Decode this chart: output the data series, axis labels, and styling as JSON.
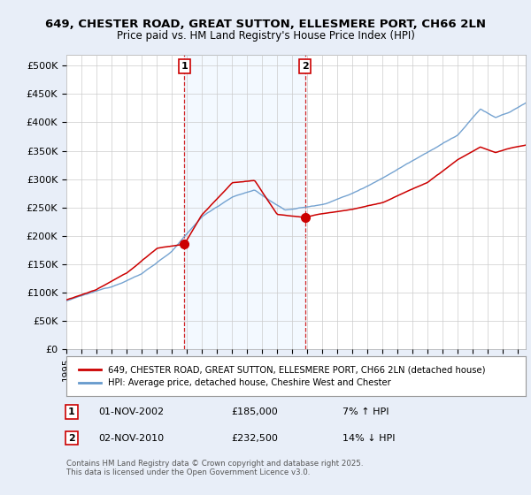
{
  "title1": "649, CHESTER ROAD, GREAT SUTTON, ELLESMERE PORT, CH66 2LN",
  "title2": "Price paid vs. HM Land Registry's House Price Index (HPI)",
  "ylim": [
    0,
    520000
  ],
  "yticks": [
    0,
    50000,
    100000,
    150000,
    200000,
    250000,
    300000,
    350000,
    400000,
    450000,
    500000
  ],
  "ytick_labels": [
    "£0",
    "£50K",
    "£100K",
    "£150K",
    "£200K",
    "£250K",
    "£300K",
    "£350K",
    "£400K",
    "£450K",
    "£500K"
  ],
  "bg_color": "#e8eef8",
  "plot_bg": "#ffffff",
  "grid_color": "#cccccc",
  "red_color": "#cc0000",
  "blue_color": "#6699cc",
  "shade_color": "#ddeeff",
  "transaction1_x": 2002.84,
  "transaction1_y": 185000,
  "transaction1_label": "1",
  "transaction2_x": 2010.84,
  "transaction2_y": 232500,
  "transaction2_label": "2",
  "legend_label1": "649, CHESTER ROAD, GREAT SUTTON, ELLESMERE PORT, CH66 2LN (detached house)",
  "legend_label2": "HPI: Average price, detached house, Cheshire West and Chester",
  "note1_num": "1",
  "note1_date": "01-NOV-2002",
  "note1_price": "£185,000",
  "note1_hpi": "7% ↑ HPI",
  "note2_num": "2",
  "note2_date": "02-NOV-2010",
  "note2_price": "£232,500",
  "note2_hpi": "14% ↓ HPI",
  "footer": "Contains HM Land Registry data © Crown copyright and database right 2025.\nThis data is licensed under the Open Government Licence v3.0.",
  "xmin": 1995.0,
  "xmax": 2025.5
}
